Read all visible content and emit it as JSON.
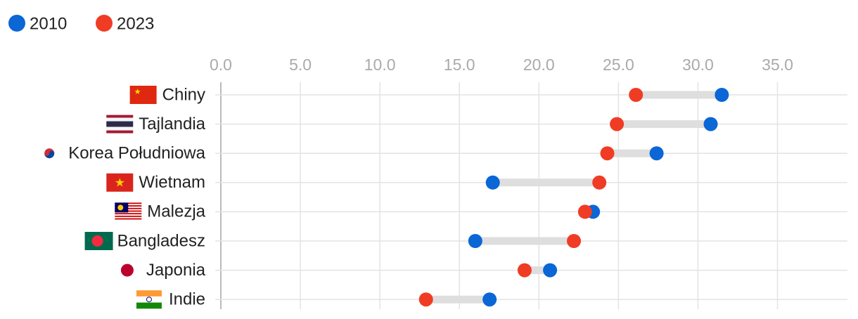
{
  "chart_data": {
    "type": "dumbbell",
    "categories": [
      "Chiny",
      "Tajlandia",
      "Korea Południowa",
      "Wietnam",
      "Malezja",
      "Bangladesz",
      "Japonia",
      "Indie"
    ],
    "series": [
      {
        "name": "2010",
        "color": "#0b66d6",
        "values": [
          31.5,
          30.8,
          27.4,
          17.1,
          23.4,
          16.0,
          20.7,
          16.9
        ]
      },
      {
        "name": "2023",
        "color": "#f03c24",
        "values": [
          26.1,
          24.9,
          24.3,
          23.8,
          22.9,
          22.2,
          19.1,
          12.9
        ]
      }
    ],
    "xlim": [
      0,
      39.4
    ],
    "xticks": [
      {
        "value": 0,
        "label": "0.0"
      },
      {
        "value": 5,
        "label": "5.0"
      },
      {
        "value": 10,
        "label": "10.0"
      },
      {
        "value": 15,
        "label": "15.0"
      },
      {
        "value": 20,
        "label": "20.0"
      },
      {
        "value": 25,
        "label": "25.0"
      },
      {
        "value": 30,
        "label": "30.0"
      },
      {
        "value": 35,
        "label": "35.0"
      }
    ],
    "grid": true
  }
}
